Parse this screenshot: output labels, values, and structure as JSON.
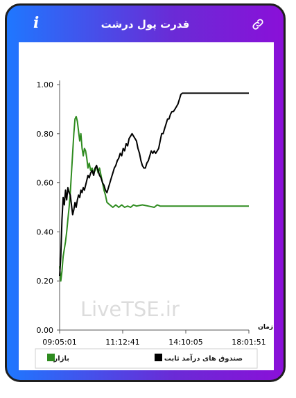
{
  "header": {
    "title": "قدرت پول درشت",
    "info_icon": "i",
    "link_icon": "link-icon"
  },
  "watermark": "LiveTSE.ir",
  "colors": {
    "frame_start": "#1f77ff",
    "frame_end": "#8a10d8",
    "market": "#2e8b1f",
    "fixed_income": "#000000"
  },
  "chart_data": {
    "type": "line",
    "ylim": [
      0,
      1
    ],
    "yticks": [
      "0.00",
      "0.20",
      "0.40",
      "0.60",
      "0.80",
      "1.00"
    ],
    "xticks": [
      "09:05:01",
      "11:12:41",
      "14:10:05",
      "18:01:51"
    ],
    "xlabel": "زمان",
    "legend": {
      "market": "بازار",
      "fixed_income": "صندوق های درآمد ثابت"
    },
    "series": [
      {
        "name": "بازار",
        "color": "#2e8b1f",
        "points": [
          [
            0,
            0.26
          ],
          [
            0.4,
            0.2
          ],
          [
            0.8,
            0.24
          ],
          [
            1.2,
            0.3
          ],
          [
            1.6,
            0.33
          ],
          [
            2.0,
            0.36
          ],
          [
            2.4,
            0.4
          ],
          [
            2.8,
            0.45
          ],
          [
            3.2,
            0.5
          ],
          [
            3.6,
            0.56
          ],
          [
            4.0,
            0.64
          ],
          [
            4.4,
            0.72
          ],
          [
            4.8,
            0.8
          ],
          [
            5.2,
            0.86
          ],
          [
            5.6,
            0.87
          ],
          [
            6.0,
            0.85
          ],
          [
            6.4,
            0.81
          ],
          [
            6.8,
            0.77
          ],
          [
            7.2,
            0.8
          ],
          [
            7.6,
            0.74
          ],
          [
            8.0,
            0.71
          ],
          [
            8.4,
            0.74
          ],
          [
            8.8,
            0.73
          ],
          [
            9.2,
            0.7
          ],
          [
            9.6,
            0.66
          ],
          [
            10,
            0.68
          ],
          [
            10.5,
            0.65
          ],
          [
            11,
            0.66
          ],
          [
            11.5,
            0.64
          ],
          [
            12,
            0.65
          ],
          [
            12.5,
            0.67
          ],
          [
            13,
            0.64
          ],
          [
            13.5,
            0.66
          ],
          [
            14,
            0.63
          ],
          [
            14.5,
            0.6
          ],
          [
            15,
            0.57
          ],
          [
            15.5,
            0.55
          ],
          [
            16,
            0.52
          ],
          [
            17,
            0.51
          ],
          [
            18,
            0.5
          ],
          [
            19,
            0.51
          ],
          [
            20,
            0.5
          ],
          [
            21,
            0.51
          ],
          [
            22,
            0.5
          ],
          [
            23,
            0.505
          ],
          [
            24,
            0.5
          ],
          [
            25,
            0.51
          ],
          [
            26,
            0.505
          ],
          [
            28,
            0.51
          ],
          [
            30,
            0.505
          ],
          [
            32,
            0.5
          ],
          [
            33,
            0.51
          ],
          [
            34,
            0.505
          ],
          [
            36,
            0.505
          ],
          [
            38,
            0.505
          ],
          [
            40,
            0.505
          ],
          [
            42,
            0.505
          ],
          [
            44,
            0.505
          ],
          [
            46,
            0.505
          ],
          [
            50,
            0.505
          ],
          [
            55,
            0.505
          ],
          [
            60,
            0.505
          ],
          [
            64,
            0.505
          ]
        ]
      },
      {
        "name": "صندوق های درآمد ثابت",
        "color": "#000000",
        "points": [
          [
            0,
            0.22
          ],
          [
            0.4,
            0.3
          ],
          [
            0.8,
            0.45
          ],
          [
            1.2,
            0.54
          ],
          [
            1.6,
            0.51
          ],
          [
            2.0,
            0.57
          ],
          [
            2.4,
            0.53
          ],
          [
            2.8,
            0.58
          ],
          [
            3.2,
            0.56
          ],
          [
            3.6,
            0.55
          ],
          [
            4.0,
            0.51
          ],
          [
            4.4,
            0.47
          ],
          [
            4.8,
            0.49
          ],
          [
            5.2,
            0.52
          ],
          [
            5.6,
            0.5
          ],
          [
            6.0,
            0.53
          ],
          [
            6.4,
            0.55
          ],
          [
            6.8,
            0.54
          ],
          [
            7.2,
            0.57
          ],
          [
            7.6,
            0.56
          ],
          [
            8.0,
            0.58
          ],
          [
            8.4,
            0.57
          ],
          [
            8.8,
            0.59
          ],
          [
            9.2,
            0.61
          ],
          [
            9.6,
            0.63
          ],
          [
            10,
            0.62
          ],
          [
            10.5,
            0.64
          ],
          [
            11,
            0.65
          ],
          [
            11.5,
            0.63
          ],
          [
            12,
            0.66
          ],
          [
            12.5,
            0.67
          ],
          [
            13,
            0.65
          ],
          [
            13.5,
            0.63
          ],
          [
            14,
            0.62
          ],
          [
            14.5,
            0.6
          ],
          [
            15,
            0.59
          ],
          [
            15.5,
            0.57
          ],
          [
            16,
            0.56
          ],
          [
            16.5,
            0.58
          ],
          [
            17,
            0.6
          ],
          [
            17.5,
            0.62
          ],
          [
            18,
            0.64
          ],
          [
            18.5,
            0.66
          ],
          [
            19,
            0.67
          ],
          [
            19.5,
            0.69
          ],
          [
            20,
            0.7
          ],
          [
            20.5,
            0.72
          ],
          [
            21,
            0.71
          ],
          [
            21.5,
            0.74
          ],
          [
            22,
            0.73
          ],
          [
            22.5,
            0.76
          ],
          [
            23,
            0.75
          ],
          [
            23.5,
            0.78
          ],
          [
            24,
            0.79
          ],
          [
            24.5,
            0.8
          ],
          [
            25,
            0.79
          ],
          [
            25.5,
            0.78
          ],
          [
            26,
            0.77
          ],
          [
            26.5,
            0.74
          ],
          [
            27,
            0.72
          ],
          [
            27.5,
            0.69
          ],
          [
            28,
            0.67
          ],
          [
            28.5,
            0.66
          ],
          [
            29,
            0.66
          ],
          [
            29.5,
            0.68
          ],
          [
            30,
            0.69
          ],
          [
            30.5,
            0.71
          ],
          [
            31,
            0.73
          ],
          [
            31.5,
            0.72
          ],
          [
            32,
            0.73
          ],
          [
            32.5,
            0.72
          ],
          [
            33,
            0.73
          ],
          [
            33.5,
            0.74
          ],
          [
            34,
            0.77
          ],
          [
            34.5,
            0.8
          ],
          [
            35,
            0.8
          ],
          [
            35.5,
            0.82
          ],
          [
            36,
            0.84
          ],
          [
            36.5,
            0.86
          ],
          [
            37,
            0.86
          ],
          [
            37.5,
            0.88
          ],
          [
            38,
            0.89
          ],
          [
            38.5,
            0.89
          ],
          [
            39,
            0.9
          ],
          [
            39.5,
            0.91
          ],
          [
            40,
            0.92
          ],
          [
            40.5,
            0.94
          ],
          [
            41,
            0.96
          ],
          [
            41.5,
            0.965
          ],
          [
            42,
            0.965
          ],
          [
            45,
            0.965
          ],
          [
            50,
            0.965
          ],
          [
            55,
            0.965
          ],
          [
            60,
            0.965
          ],
          [
            64,
            0.965
          ]
        ]
      }
    ]
  }
}
